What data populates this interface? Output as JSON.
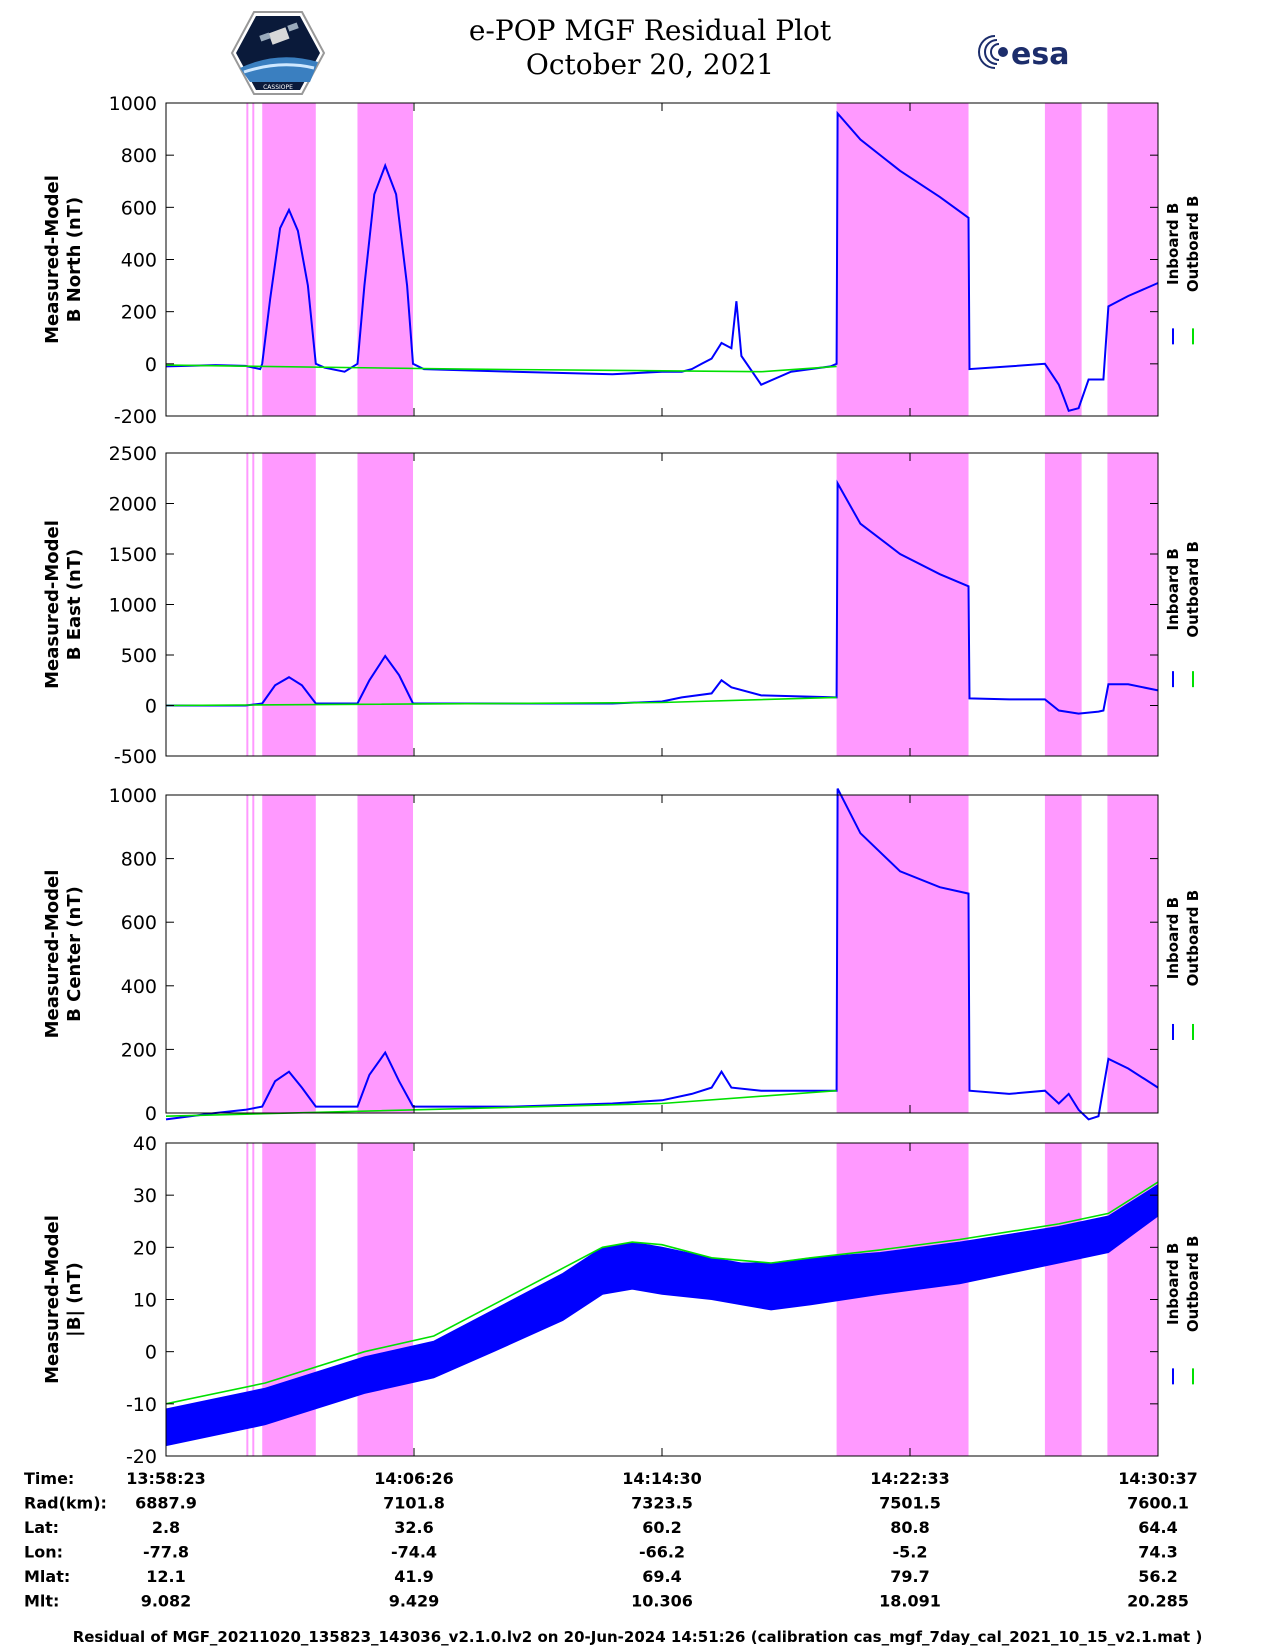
{
  "header": {
    "title_line1": "e-POP MGF Residual Plot",
    "title_line2": "October 20, 2021",
    "logo_left_text": "CASSIOPE",
    "logo_right_text": "esa"
  },
  "colors": {
    "inboard": "#0000ff",
    "outboard": "#00e000",
    "shade": "#ff99ff"
  },
  "legend": {
    "inboard": "Inboard B",
    "outboard": "Outboard B"
  },
  "shaded_intervals_frac": [
    [
      0.081,
      0.083
    ],
    [
      0.087,
      0.089
    ],
    [
      0.097,
      0.151
    ],
    [
      0.193,
      0.249
    ],
    [
      0.676,
      0.809
    ],
    [
      0.886,
      0.923
    ],
    [
      0.949,
      1.0
    ]
  ],
  "chart_data": [
    {
      "type": "line",
      "ylabel": "Measured-Model\nB North (nT)",
      "ylim": [
        -200,
        1000
      ],
      "yticks": [
        -200,
        0,
        200,
        400,
        600,
        800,
        1000
      ],
      "series": [
        {
          "name": "Inboard B",
          "x": [
            0,
            0.05,
            0.08,
            0.095,
            0.097,
            0.105,
            0.115,
            0.124,
            0.133,
            0.143,
            0.151,
            0.16,
            0.18,
            0.193,
            0.2,
            0.21,
            0.221,
            0.232,
            0.243,
            0.249,
            0.26,
            0.35,
            0.45,
            0.5,
            0.52,
            0.53,
            0.54,
            0.55,
            0.56,
            0.57,
            0.575,
            0.58,
            0.6,
            0.63,
            0.67,
            0.676,
            0.677,
            0.7,
            0.74,
            0.78,
            0.809,
            0.81,
            0.85,
            0.886,
            0.9,
            0.905,
            0.91,
            0.92,
            0.93,
            0.945,
            0.95,
            0.97,
            1.0
          ],
          "y": [
            -10,
            -5,
            -8,
            -20,
            0,
            250,
            520,
            590,
            510,
            300,
            0,
            -15,
            -30,
            0,
            300,
            650,
            760,
            650,
            300,
            0,
            -20,
            -30,
            -40,
            -30,
            -30,
            -20,
            0,
            20,
            80,
            60,
            240,
            30,
            -80,
            -30,
            -10,
            0,
            960,
            860,
            740,
            640,
            560,
            -20,
            -10,
            0,
            -80,
            -130,
            -180,
            -170,
            -60,
            -60,
            220,
            260,
            310
          ]
        },
        {
          "name": "Outboard B",
          "x": [
            0,
            0.3,
            0.6,
            0.676
          ],
          "y": [
            -5,
            -20,
            -30,
            -10
          ]
        }
      ]
    },
    {
      "type": "line",
      "ylabel": "Measured-Model\nB East (nT)",
      "ylim": [
        -500,
        2500
      ],
      "yticks": [
        -500,
        0,
        500,
        1000,
        1500,
        2000,
        2500
      ],
      "series": [
        {
          "name": "Inboard B",
          "x": [
            0,
            0.08,
            0.097,
            0.11,
            0.124,
            0.137,
            0.151,
            0.193,
            0.205,
            0.221,
            0.235,
            0.249,
            0.35,
            0.45,
            0.5,
            0.52,
            0.55,
            0.56,
            0.57,
            0.6,
            0.676,
            0.677,
            0.7,
            0.74,
            0.78,
            0.809,
            0.81,
            0.85,
            0.886,
            0.9,
            0.92,
            0.94,
            0.945,
            0.95,
            0.97,
            1.0
          ],
          "y": [
            0,
            0,
            20,
            200,
            280,
            200,
            20,
            20,
            250,
            490,
            300,
            20,
            20,
            20,
            40,
            80,
            120,
            250,
            180,
            100,
            80,
            2200,
            1800,
            1500,
            1300,
            1180,
            70,
            60,
            60,
            -50,
            -80,
            -60,
            -50,
            210,
            210,
            150
          ]
        },
        {
          "name": "Outboard B",
          "x": [
            0,
            0.5,
            0.676
          ],
          "y": [
            0,
            30,
            80
          ]
        }
      ]
    },
    {
      "type": "line",
      "ylabel": "Measured-Model\nB Center (nT)",
      "ylim": [
        0,
        1000
      ],
      "yticks": [
        0,
        200,
        400,
        600,
        800,
        1000
      ],
      "series": [
        {
          "name": "Inboard B",
          "x": [
            0,
            0.05,
            0.08,
            0.097,
            0.11,
            0.124,
            0.137,
            0.151,
            0.193,
            0.205,
            0.221,
            0.235,
            0.249,
            0.35,
            0.45,
            0.5,
            0.53,
            0.55,
            0.56,
            0.57,
            0.6,
            0.676,
            0.677,
            0.7,
            0.74,
            0.78,
            0.809,
            0.81,
            0.85,
            0.886,
            0.9,
            0.91,
            0.92,
            0.93,
            0.94,
            0.95,
            0.97,
            1.0
          ],
          "y": [
            -20,
            0,
            10,
            20,
            100,
            130,
            80,
            20,
            20,
            120,
            190,
            100,
            20,
            20,
            30,
            40,
            60,
            80,
            130,
            80,
            70,
            70,
            1020,
            880,
            760,
            710,
            690,
            70,
            60,
            70,
            30,
            60,
            10,
            -20,
            -10,
            170,
            140,
            80
          ]
        },
        {
          "name": "Outboard B",
          "x": [
            0,
            0.5,
            0.676
          ],
          "y": [
            -10,
            30,
            70
          ]
        }
      ]
    },
    {
      "type": "area",
      "ylabel": "Measured-Model\n|B| (nT)",
      "ylim": [
        -20,
        40
      ],
      "yticks": [
        -20,
        -10,
        0,
        10,
        20,
        30,
        40
      ],
      "series": [
        {
          "name": "Inboard B",
          "x": [
            0,
            0.1,
            0.2,
            0.27,
            0.33,
            0.4,
            0.44,
            0.47,
            0.5,
            0.55,
            0.58,
            0.61,
            0.65,
            0.72,
            0.8,
            0.9,
            0.95,
            1.0
          ],
          "upper": [
            -11,
            -7,
            -1,
            2,
            8,
            15,
            20,
            21,
            20,
            18,
            17,
            17,
            18,
            19,
            21,
            24,
            26,
            32
          ],
          "lower": [
            -18,
            -14,
            -8,
            -5,
            0,
            6,
            11,
            12,
            11,
            10,
            9,
            8,
            9,
            11,
            13,
            17,
            19,
            26
          ]
        },
        {
          "name": "Outboard B",
          "x": [
            0,
            0.1,
            0.2,
            0.27,
            0.33,
            0.4,
            0.44,
            0.47,
            0.5,
            0.55,
            0.58,
            0.61,
            0.65,
            0.72,
            0.8,
            0.9,
            0.95,
            1.0
          ],
          "y": [
            -10,
            -6,
            0,
            3,
            9,
            16,
            20,
            21,
            20.5,
            18,
            17.5,
            17,
            18,
            19.5,
            21.5,
            24.5,
            26.5,
            32.5
          ]
        }
      ]
    }
  ],
  "axis_table": {
    "rows": [
      {
        "label": "Time:",
        "values": [
          "13:58:23",
          "14:06:26",
          "14:14:30",
          "14:22:33",
          "14:30:37"
        ]
      },
      {
        "label": "Rad(km):",
        "values": [
          "6887.9",
          "7101.8",
          "7323.5",
          "7501.5",
          "7600.1"
        ]
      },
      {
        "label": "Lat:",
        "values": [
          "2.8",
          "32.6",
          "60.2",
          "80.8",
          "64.4"
        ]
      },
      {
        "label": "Lon:",
        "values": [
          "-77.8",
          "-74.4",
          "-66.2",
          "-5.2",
          "74.3"
        ]
      },
      {
        "label": "Mlat:",
        "values": [
          "12.1",
          "41.9",
          "69.4",
          "79.7",
          "56.2"
        ]
      },
      {
        "label": "Mlt:",
        "values": [
          "9.082",
          "9.429",
          "10.306",
          "18.091",
          "20.285"
        ]
      }
    ]
  },
  "footer": "Residual of MGF_20211020_135823_143036_v2.1.0.lv2 on 20-Jun-2024 14:51:26 (calibration cas_mgf_7day_cal_2021_10_15_v2.1.mat )"
}
